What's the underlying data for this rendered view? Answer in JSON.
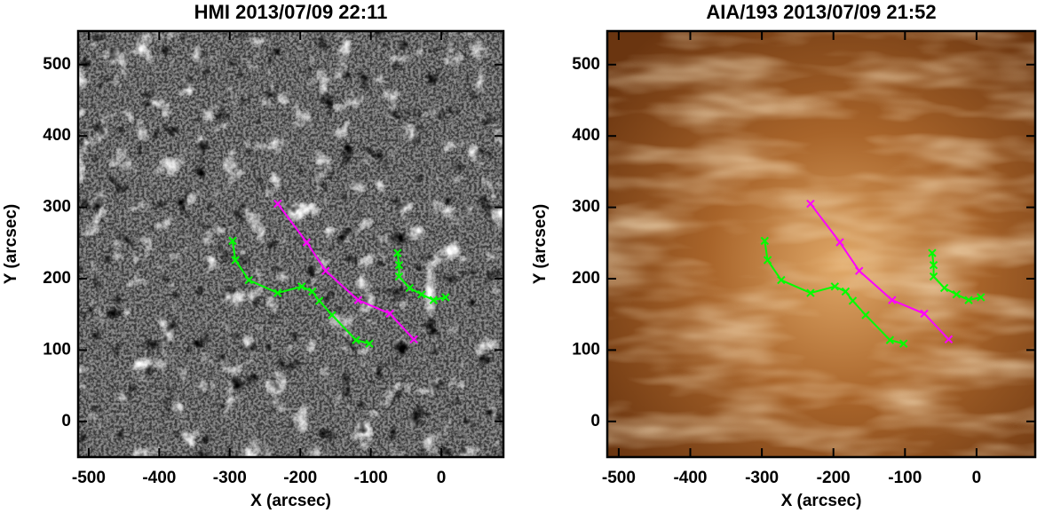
{
  "chart_data": [
    {
      "type": "line",
      "title": "HMI 2013/07/09 22:11",
      "xlabel": "X (arcsec)",
      "ylabel": "Y (arcsec)",
      "background": "magnetogram",
      "xlim": [
        -515,
        88
      ],
      "ylim": [
        -50,
        547
      ],
      "xticks": [
        -500,
        -400,
        -300,
        -200,
        -100,
        0
      ],
      "yticks": [
        0,
        100,
        200,
        300,
        400,
        500
      ],
      "series": [
        {
          "color": "#ff00ff",
          "x": [
            -232,
            -191,
            -164,
            -118,
            -73,
            -39
          ],
          "values": [
            305,
            251,
            211,
            170,
            151,
            115
          ]
        },
        {
          "color": "#00ff00",
          "x": [
            -296,
            -292,
            -273,
            -232,
            -198,
            -183,
            -173,
            -155,
            -121,
            -102
          ],
          "values": [
            253,
            226,
            198,
            180,
            189,
            182,
            169,
            149,
            114,
            109
          ]
        },
        {
          "color": "#00ff00",
          "x": [
            -62,
            -60,
            -60,
            -45,
            -28,
            -11,
            6
          ],
          "values": [
            236,
            219,
            203,
            187,
            178,
            170,
            174
          ]
        }
      ]
    },
    {
      "type": "line",
      "title": "AIA/193 2013/07/09 21:52",
      "xlabel": "X (arcsec)",
      "ylabel": "Y (arcsec)",
      "background": "euv",
      "xlim": [
        -516,
        82
      ],
      "ylim": [
        -50,
        547
      ],
      "xticks": [
        -500,
        -400,
        -300,
        -200,
        -100,
        0
      ],
      "yticks": [
        0,
        100,
        200,
        300,
        400,
        500
      ],
      "series": [
        {
          "color": "#ff00ff",
          "x": [
            -232,
            -191,
            -164,
            -118,
            -73,
            -39
          ],
          "values": [
            305,
            251,
            211,
            170,
            151,
            115
          ]
        },
        {
          "color": "#00ff00",
          "x": [
            -296,
            -292,
            -273,
            -232,
            -198,
            -183,
            -173,
            -155,
            -121,
            -102
          ],
          "values": [
            253,
            226,
            198,
            180,
            189,
            182,
            169,
            149,
            114,
            109
          ]
        },
        {
          "color": "#00ff00",
          "x": [
            -62,
            -60,
            -60,
            -45,
            -28,
            -11,
            6
          ],
          "values": [
            236,
            219,
            203,
            187,
            178,
            170,
            174
          ]
        }
      ]
    }
  ]
}
